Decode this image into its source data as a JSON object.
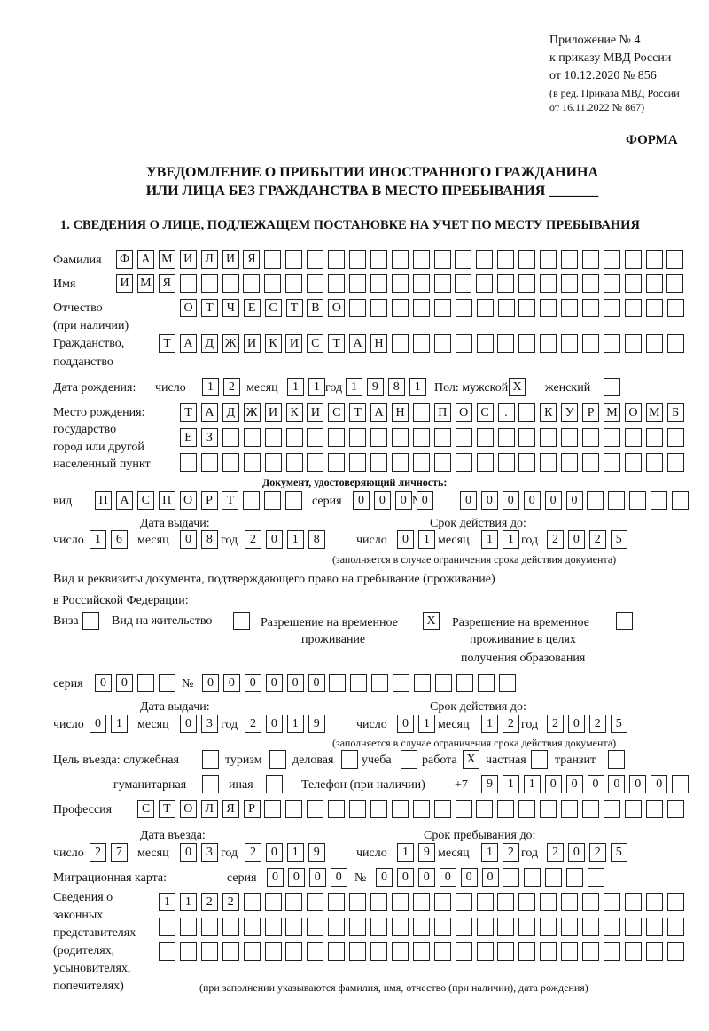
{
  "header": {
    "appendix": "Приложение № 4",
    "order": "к приказу МВД России",
    "order_date": "от 10.12.2020 № 856",
    "edition1": "(в ред. Приказа МВД России",
    "edition2": "от 16.11.2022 № 867)",
    "form": "ФОРМА",
    "title1": "УВЕДОМЛЕНИЕ О ПРИБЫТИИ ИНОСТРАННОГО ГРАЖДАНИНА",
    "title2": "ИЛИ ЛИЦА БЕЗ ГРАЖДАНСТВА В МЕСТО ПРЕБЫВАНИЯ _______",
    "section1": "1. СВЕДЕНИЯ О ЛИЦЕ, ПОДЛЕЖАЩЕМ ПОСТАНОВКЕ НА УЧЕТ ПО МЕСТУ ПРЕБЫВАНИЯ"
  },
  "labels": {
    "surname": "Фамилия",
    "name": "Имя",
    "patronymic1": "Отчество",
    "patronymic2": "(при наличии)",
    "citizenship1": "Гражданство,",
    "citizenship2": "подданство",
    "birth_date": "Дата рождения:",
    "day": "число",
    "month": "месяц",
    "year": "год",
    "sex": "Пол: мужской",
    "female": "женский",
    "birthplace1": "Место рождения:",
    "birthplace2": "государство",
    "birthplace3": "город или другой",
    "birthplace4": "населенный пункт",
    "id_doc": "Документ, удостоверяющий личность:",
    "kind": "вид",
    "series": "серия",
    "number": "№",
    "issue_date": "Дата выдачи:",
    "valid_until": "Срок действия до:",
    "validity_note": "(заполняется в случае ограничения срока действия документа)",
    "stay_doc1": "Вид и реквизиты документа, подтверждающего право на пребывание (проживание)",
    "stay_doc2": "в Российской Федерации:",
    "visa": "Виза",
    "residence": "Вид на жительство",
    "temp1": "Разрешение на временное",
    "temp2": "проживание",
    "edu1": "Разрешение на временное",
    "edu2": "проживание в целях",
    "edu3": "получения образования",
    "purpose": "Цель въезда: служебная",
    "tourism": "туризм",
    "business": "деловая",
    "study": "учеба",
    "work": "работа",
    "private": "частная",
    "transit": "транзит",
    "humanitarian": "гуманитарная",
    "other": "иная",
    "phone": "Телефон (при наличии)",
    "phone_prefix": "+7",
    "profession": "Профессия",
    "entry_date": "Дата въезда:",
    "stay_until": "Срок пребывания до:",
    "migration_card": "Миграционная карта:",
    "reps1": "Сведения о",
    "reps2": "законных",
    "reps3": "представителях",
    "reps4": "(родителях,",
    "reps5": "усыновителях,",
    "reps6": "попечителях)",
    "reps_note": "(при заполнении указываются фамилия, имя, отчество (при наличии), дата рождения)"
  },
  "fields": {
    "surname": [
      "Ф",
      "А",
      "М",
      "И",
      "Л",
      "И",
      "Я"
    ],
    "name": [
      "И",
      "М",
      "Я"
    ],
    "patronymic": [
      "О",
      "Т",
      "Ч",
      "Е",
      "С",
      "Т",
      "В",
      "О"
    ],
    "citizenship": [
      "Т",
      "А",
      "Д",
      "Ж",
      "И",
      "К",
      "И",
      "С",
      "Т",
      "А",
      "Н"
    ],
    "birth_day": [
      "1",
      "2"
    ],
    "birth_month": [
      "1",
      "1"
    ],
    "birth_year": [
      "1",
      "9",
      "8",
      "1"
    ],
    "sex_male": "X",
    "sex_female": "",
    "birthplace_1": [
      "Т",
      "А",
      "Д",
      "Ж",
      "И",
      "К",
      "И",
      "С",
      "Т",
      "А",
      "Н",
      "",
      "П",
      "О",
      "С",
      ".",
      "",
      "К",
      "У",
      "Р",
      "М",
      "О",
      "М",
      "Б"
    ],
    "birthplace_2": [
      "Е",
      "З"
    ],
    "birthplace_3": [],
    "id_kind": [
      "П",
      "А",
      "С",
      "П",
      "О",
      "Р",
      "Т"
    ],
    "id_series": [
      "0",
      "0",
      "0",
      "0"
    ],
    "id_number": [
      "0",
      "0",
      "0",
      "0",
      "0",
      "0"
    ],
    "id_issue_day": [
      "1",
      "6"
    ],
    "id_issue_month": [
      "0",
      "8"
    ],
    "id_issue_year": [
      "2",
      "0",
      "1",
      "8"
    ],
    "id_valid_day": [
      "0",
      "1"
    ],
    "id_valid_month": [
      "1",
      "1"
    ],
    "id_valid_year": [
      "2",
      "0",
      "2",
      "5"
    ],
    "doc_visa": "",
    "doc_residence": "",
    "doc_temp": "X",
    "doc_edu": "",
    "stay_series": [
      "0",
      "0"
    ],
    "stay_number": [
      "0",
      "0",
      "0",
      "0",
      "0",
      "0"
    ],
    "stay_issue_day": [
      "0",
      "1"
    ],
    "stay_issue_month": [
      "0",
      "3"
    ],
    "stay_issue_year": [
      "2",
      "0",
      "1",
      "9"
    ],
    "stay_valid_day": [
      "0",
      "1"
    ],
    "stay_valid_month": [
      "1",
      "2"
    ],
    "stay_valid_year": [
      "2",
      "0",
      "2",
      "5"
    ],
    "purpose_official": "",
    "purpose_tourism": "",
    "purpose_business": "",
    "purpose_study": "",
    "purpose_work": "X",
    "purpose_private": "",
    "purpose_transit": "",
    "purpose_humanitarian": "",
    "purpose_other": "",
    "phone": [
      "9",
      "1",
      "1",
      "0",
      "0",
      "0",
      "0",
      "0",
      "0"
    ],
    "profession": [
      "С",
      "Т",
      "О",
      "Л",
      "Я",
      "Р"
    ],
    "entry_day": [
      "2",
      "7"
    ],
    "entry_month": [
      "0",
      "3"
    ],
    "entry_year": [
      "2",
      "0",
      "1",
      "9"
    ],
    "until_day": [
      "1",
      "9"
    ],
    "until_month": [
      "1",
      "2"
    ],
    "until_year": [
      "2",
      "0",
      "2",
      "5"
    ],
    "mc_series": [
      "0",
      "0",
      "0",
      "0"
    ],
    "mc_number": [
      "0",
      "0",
      "0",
      "0",
      "0",
      "0"
    ],
    "reps_1": [
      "1",
      "1",
      "2",
      "2"
    ],
    "reps_2": [],
    "reps_3": []
  }
}
